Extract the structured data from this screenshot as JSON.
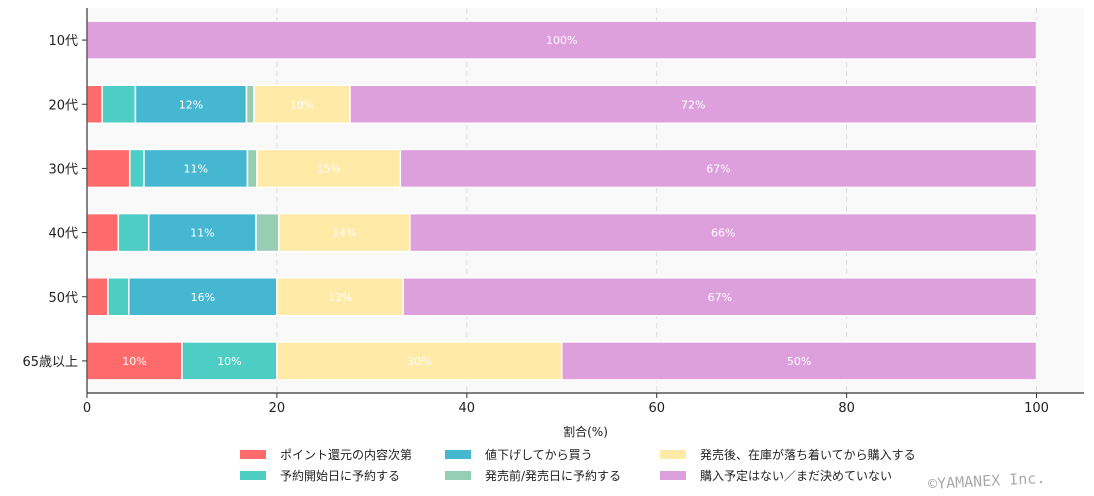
{
  "chart_data": {
    "type": "bar",
    "orientation": "horizontal",
    "stacked": true,
    "title": "",
    "xlabel": "割合(%)",
    "ylabel": "",
    "xlim": [
      0,
      105
    ],
    "xticks": [
      0,
      20,
      40,
      60,
      80,
      100
    ],
    "grid": "x dashed",
    "legend_position": "bottom",
    "categories": [
      "10代",
      "20代",
      "30代",
      "40代",
      "50代",
      "65歳以上"
    ],
    "series": [
      {
        "name": "ポイント還元の内容次第",
        "color": "#ff6b6b",
        "values": [
          0,
          1.6,
          4.5,
          3.3,
          2.2,
          10
        ]
      },
      {
        "name": "予約開始日に予約する",
        "color": "#4ecdc4",
        "values": [
          0,
          3.5,
          1.5,
          3.2,
          2.2,
          10
        ]
      },
      {
        "name": "値下げしてから買う",
        "color": "#45b7d1",
        "values": [
          0,
          11.7,
          10.9,
          11.3,
          15.6,
          0
        ]
      },
      {
        "name": "発売前/発売日に予約する",
        "color": "#96ceb4",
        "values": [
          0,
          0.8,
          1.0,
          2.4,
          0,
          0
        ]
      },
      {
        "name": "発売後、在庫が落ち着いてから購入する",
        "color": "#ffeaa7",
        "values": [
          0,
          10.1,
          15.1,
          13.8,
          13.3,
          30
        ]
      },
      {
        "name": "購入予定はない／まだ決めていない",
        "color": "#dda0dd",
        "values": [
          100,
          72.3,
          67.0,
          66.0,
          66.7,
          50
        ]
      }
    ],
    "label_threshold_percent": 8
  },
  "copyright": "©YAMANEX Inc."
}
